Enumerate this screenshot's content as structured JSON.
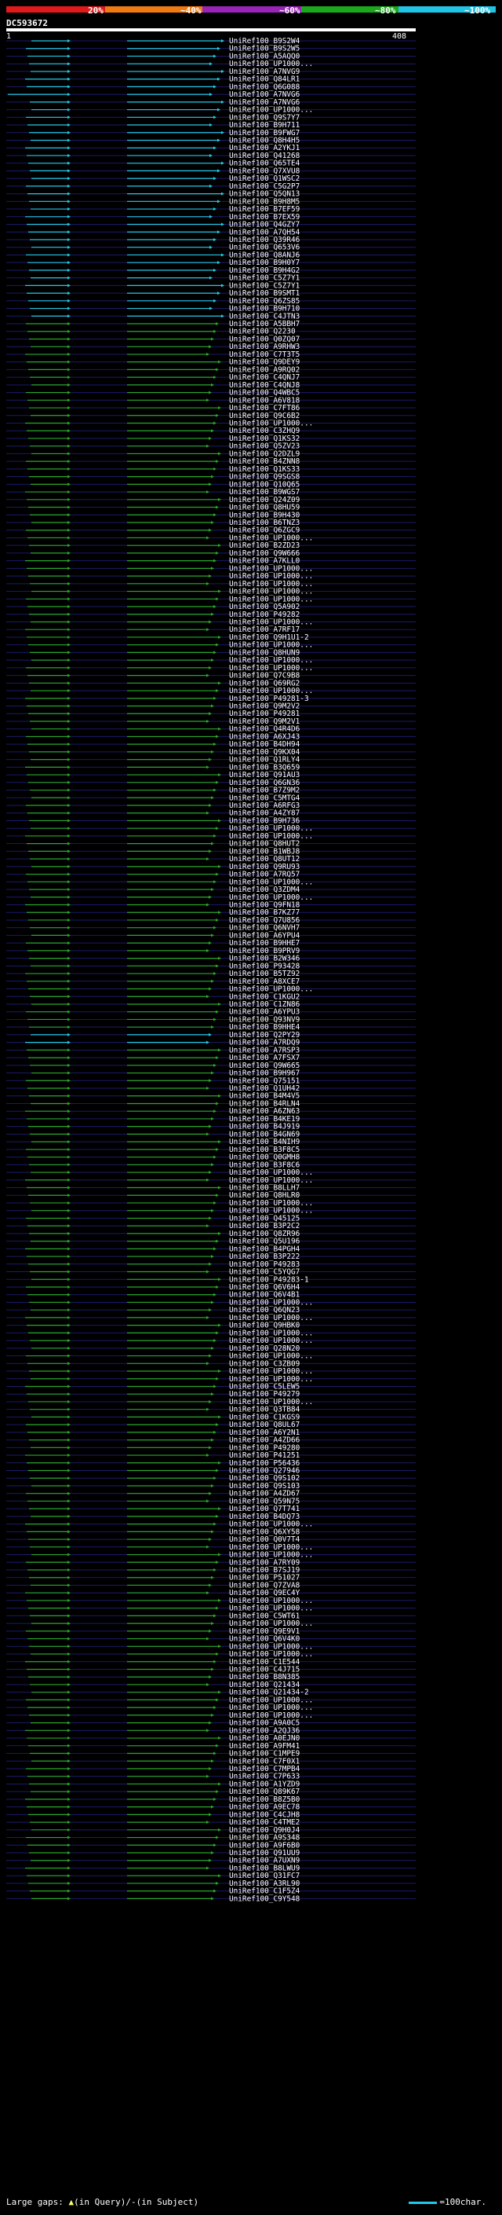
{
  "scale": {
    "labels": [
      "20%",
      "~40%",
      "~60%",
      "~80%",
      "~100%"
    ],
    "colors": [
      "#e01a1a",
      "#ef7a12",
      "#9a24b8",
      "#1ca81c",
      "#22c4e6"
    ]
  },
  "query": {
    "id": "DC593672",
    "start": "1",
    "end": "408"
  },
  "legend": {
    "gaps_label": "Large gaps:",
    "gap_query": "(in Query)/",
    "gap_subject": "(in Subject)",
    "scale_label": "=100char."
  },
  "hit_names": [
    "UniRef100_B9S2W4",
    "UniRef100_B9S2W5",
    "UniRef100_A5AQQ0",
    "UniRef100_UP1000...",
    "UniRef100_A7NVG9",
    "UniRef100_Q84LR1",
    "UniRef100_Q6G088",
    "UniRef100_A7NVG6",
    "UniRef100_A7NVG6",
    "UniRef100_UP1000...",
    "UniRef100_Q9S7Y7",
    "UniRef100_B9H711",
    "UniRef100_B9FWG7",
    "UniRef100_Q8H4H5",
    "UniRef100_A2YKJ1",
    "UniRef100_Q41268",
    "UniRef100_Q65TE4",
    "UniRef100_Q7XVU8",
    "UniRef100_Q1WSC2",
    "UniRef100_C5G2P7",
    "UniRef100_Q5QN13",
    "UniRef100_B9H8M5",
    "UniRef100_B7EF59",
    "UniRef100_B7EX59",
    "UniRef100_Q4GZY7",
    "UniRef100_A7QH54",
    "UniRef100_Q39R46",
    "UniRef100_Q653V6",
    "UniRef100_Q8ANJ6",
    "UniRef100_B9H0Y7",
    "UniRef100_B9H4G2",
    "UniRef100_C5Z7Y1",
    "UniRef100_C5Z7Y1",
    "UniRef100_B9SMT1",
    "UniRef100_Q6ZS85",
    "UniRef100_B9H710",
    "UniRef100_C4JTN3",
    "UniRef100_A5BBH7",
    "UniRef100_Q2230",
    "UniRef100_Q0ZQ07",
    "UniRef100_A9RHW3",
    "UniRef100_C7T3T5",
    "UniRef100_Q9DEY9",
    "UniRef100_A9RQ02",
    "UniRef100_C4QNJ7",
    "UniRef100_C4QNJ8",
    "UniRef100_Q4WBC5",
    "UniRef100_A6V818",
    "UniRef100_C7FT86",
    "UniRef100_Q9C6B2",
    "UniRef100_UP1000...",
    "UniRef100_C3ZHQ9",
    "UniRef100_Q1KS32",
    "UniRef100_Q5ZV23",
    "UniRef100_Q2DZL9",
    "UniRef100_B4ZNN8",
    "UniRef100_Q1KS33",
    "UniRef100_Q9SGS8",
    "UniRef100_Q10Q65",
    "UniRef100_B9WGS7",
    "UniRef100_Q24Z09",
    "UniRef100_Q8HU59",
    "UniRef100_B9H430",
    "UniRef100_B6TNZ3",
    "UniRef100_Q6ZGC9",
    "UniRef100_UP1000...",
    "UniRef100_B2ZD23",
    "UniRef100_Q9W666",
    "UniRef100_A7KLL0",
    "UniRef100_UP1000...",
    "UniRef100_UP1000...",
    "UniRef100_UP1000...",
    "UniRef100_UP1000...",
    "UniRef100_UP1000...",
    "UniRef100_Q5A902",
    "UniRef100_P49282",
    "UniRef100_UP1000...",
    "UniRef100_A7RF17",
    "UniRef100_Q9H1U1-2",
    "UniRef100_UP1000...",
    "UniRef100_Q8HUN9",
    "UniRef100_UP1000...",
    "UniRef100_UP1000...",
    "UniRef100_Q7C9B8",
    "UniRef100_Q69RG2",
    "UniRef100_UP1000...",
    "UniRef100_P49281-3",
    "UniRef100_Q9M2V2",
    "UniRef100_P49281",
    "UniRef100_Q9M2V1",
    "UniRef100_Q4R4D6",
    "UniRef100_A6XJ43",
    "UniRef100_B4DH94",
    "UniRef100_Q9KX04",
    "UniRef100_Q1RLY4",
    "UniRef100_B3Q659",
    "UniRef100_Q91AU3",
    "UniRef100_Q6GN36",
    "UniRef100_B7Z9M2",
    "UniRef100_C5MTG4",
    "UniRef100_A6RFG3",
    "UniRef100_A4ZY87",
    "UniRef100_B9H736",
    "UniRef100_UP1000...",
    "UniRef100_UP1000...",
    "UniRef100_Q8HUT2",
    "UniRef100_B1WBJ8",
    "UniRef100_Q8UT12",
    "UniRef100_Q9RU93",
    "UniRef100_A7RQ57",
    "UniRef100_UP1000...",
    "UniRef100_Q3ZDM4",
    "UniRef100_UP1000...",
    "UniRef100_Q9FN18",
    "UniRef100_B7KZ77",
    "UniRef100_Q7U856",
    "UniRef100_Q6NVH7",
    "UniRef100_A6YPU4",
    "UniRef100_B9HHE7",
    "UniRef100_B9PRV9",
    "UniRef100_B2W346",
    "UniRef100_P93428",
    "UniRef100_B5TZ92",
    "UniRef100_A8XCE7",
    "UniRef100_UP1000...",
    "UniRef100_C1KGU2",
    "UniRef100_C1ZN86",
    "UniRef100_A6YPU3",
    "UniRef100_Q93NV9",
    "UniRef100_B9HHE4",
    "UniRef100_Q2PY29",
    "UniRef100_A7RDQ9",
    "UniRef100_A7RSP3",
    "UniRef100_A7FSX7",
    "UniRef100_Q9W665",
    "UniRef100_B9H967",
    "UniRef100_Q75151",
    "UniRef100_Q1UH42",
    "UniRef100_B4M4V5",
    "UniRef100_B4RLN4",
    "UniRef100_A6ZN63",
    "UniRef100_B4KE19",
    "UniRef100_B4J919",
    "UniRef100_B4GN69",
    "UniRef100_B4NIH9",
    "UniRef100_B3F8C5",
    "UniRef100_Q0GMH8",
    "UniRef100_B3F8C6",
    "UniRef100_UP1000...",
    "UniRef100_UP1000...",
    "UniRef100_B8LLH7",
    "UniRef100_Q8HLR0",
    "UniRef100_UP1000...",
    "UniRef100_UP1000...",
    "UniRef100_Q45125",
    "UniRef100_B3P2C2",
    "UniRef100_Q8ZR96",
    "UniRef100_Q5U196",
    "UniRef100_B4PGH4",
    "UniRef100_B3P222",
    "UniRef100_P49283",
    "UniRef100_C5YQG7",
    "UniRef100_P49283-1",
    "UniRef100_Q6V6H4",
    "UniRef100_Q6V4B1",
    "UniRef100_UP1000...",
    "UniRef100_Q6QN23",
    "UniRef100_UP1000...",
    "UniRef100_Q9HBK0",
    "UniRef100_UP1000...",
    "UniRef100_UP1000...",
    "UniRef100_Q28N20",
    "UniRef100_UP1000...",
    "UniRef100_C3ZB09",
    "UniRef100_UP1000...",
    "UniRef100_UP1000...",
    "UniRef100_C5LEW5",
    "UniRef100_P49279",
    "UniRef100_UP1000...",
    "UniRef100_Q3TB84",
    "UniRef100_C1KGS9",
    "UniRef100_Q8UL67",
    "UniRef100_A6Y2N1",
    "UniRef100_A4ZD66",
    "UniRef100_P49280",
    "UniRef100_P41251",
    "UniRef100_P56436",
    "UniRef100_Q27946",
    "UniRef100_Q9S102",
    "UniRef100_Q9S103",
    "UniRef100_A4ZD67",
    "UniRef100_Q59N75",
    "UniRef100_Q7T741",
    "UniRef100_B4DQ73",
    "UniRef100_UP1000...",
    "UniRef100_Q6XY58",
    "UniRef100_Q0V7T4",
    "UniRef100_UP1000...",
    "UniRef100_UP1000...",
    "UniRef100_A7RY09",
    "UniRef100_B7SJ19",
    "UniRef100_P51027",
    "UniRef100_Q7ZVA8",
    "UniRef100_Q9EC4Y",
    "UniRef100_UP1000...",
    "UniRef100_UP1000...",
    "UniRef100_C5WT61",
    "UniRef100_UP1000...",
    "UniRef100_Q9E9V1",
    "UniRef100_Q6V4K0",
    "UniRef100_UP1000...",
    "UniRef100_UP1000...",
    "UniRef100_C1E544",
    "UniRef100_C4J715",
    "UniRef100_B8N385",
    "UniRef100_Q21434",
    "UniRef100_Q21434-2",
    "UniRef100_UP1000...",
    "UniRef100_UP1000...",
    "UniRef100_UP1000...",
    "UniRef100_A9A0C5",
    "UniRef100_A2QJ36",
    "UniRef100_A0EJN0",
    "UniRef100_A9FM41",
    "UniRef100_C1MPE9",
    "UniRef100_C7F0X1",
    "UniRef100_C7MPB4",
    "UniRef100_C7P633",
    "UniRef100_A1YZD9",
    "UniRef100_Q89K67",
    "UniRef100_B8Z5B0",
    "UniRef100_A9EC78",
    "UniRef100_C4CJH8",
    "UniRef100_C4TME2",
    "UniRef100_Q9H0J4",
    "UniRef100_A9S348",
    "UniRef100_A9F6B0",
    "UniRef100_Q91UU9",
    "UniRef100_A7UXN9",
    "UniRef100_B8LWU9",
    "UniRef100_Q31FC7",
    "UniRef100_A3RL90",
    "UniRef100_C1F5Z4",
    "UniRef100_C9Y548"
  ]
}
